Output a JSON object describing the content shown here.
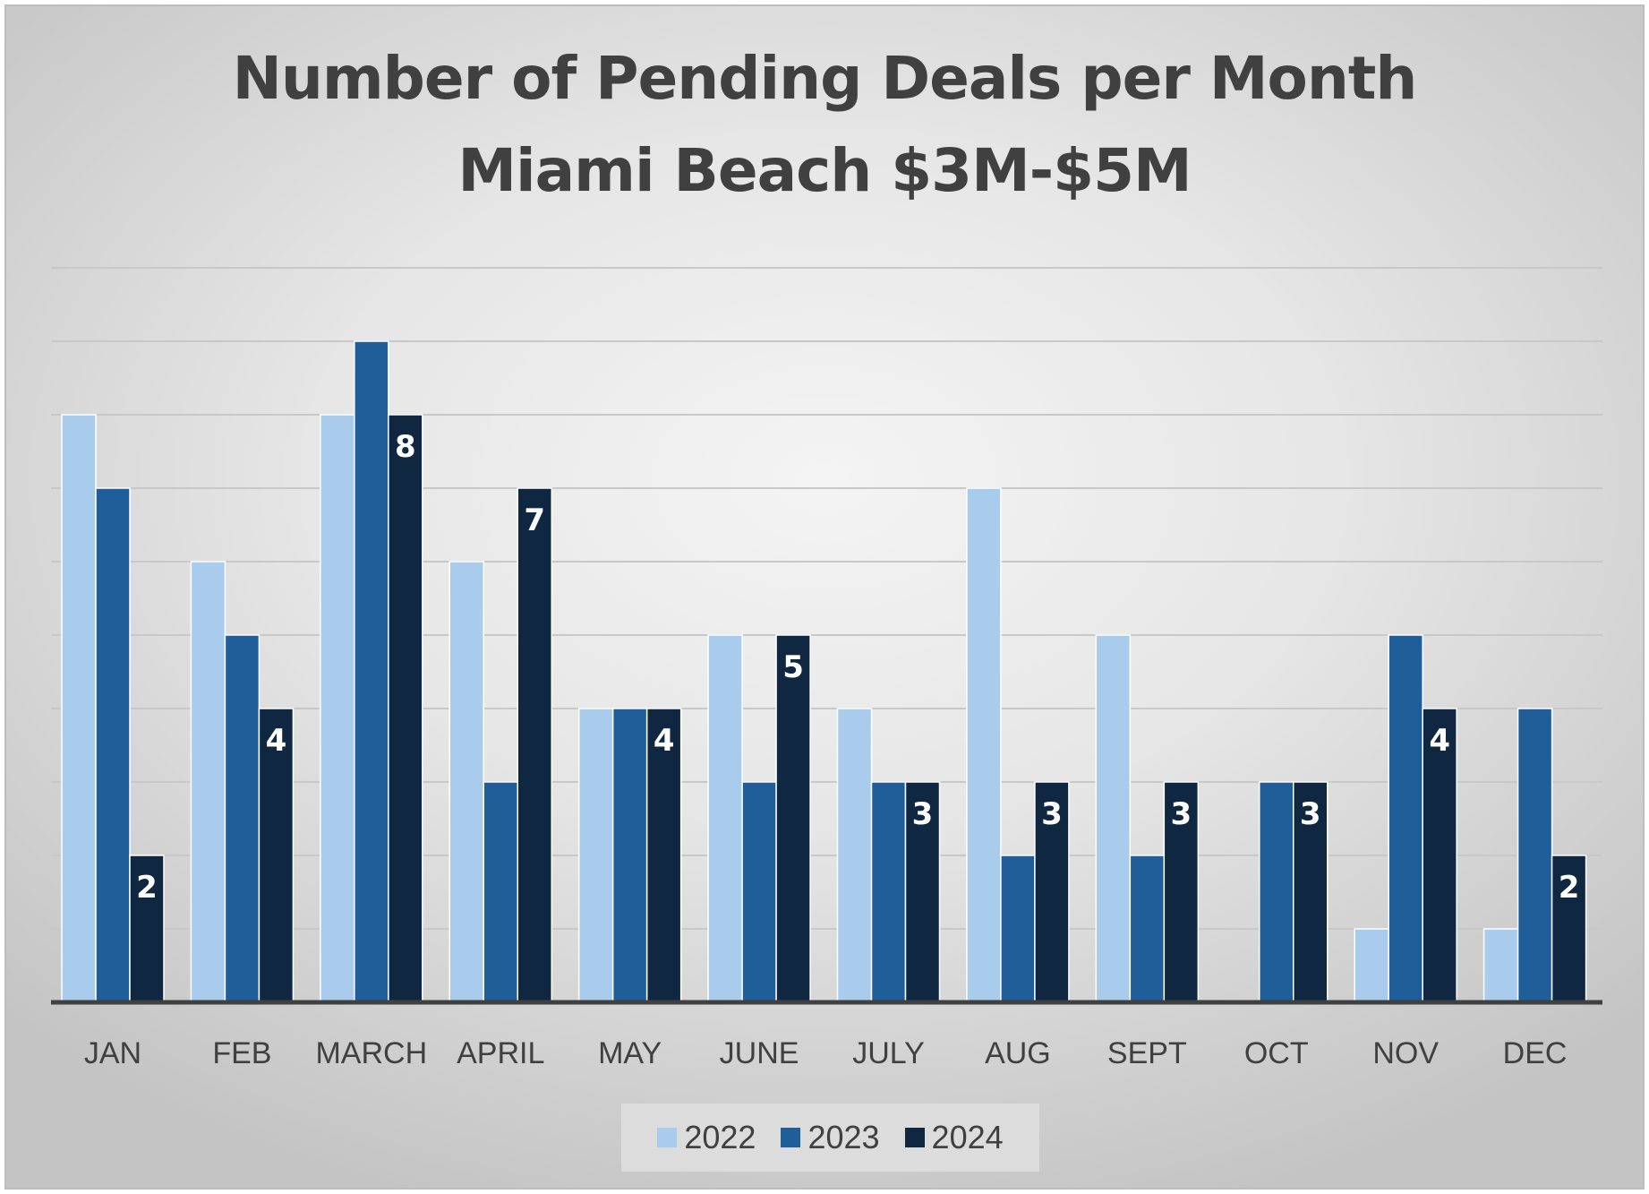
{
  "chart_data": {
    "type": "bar",
    "title": "Number of Pending Deals per Month",
    "subtitle": "Miami Beach $3M-$5M",
    "categories": [
      "JAN",
      "FEB",
      "MARCH",
      "APRIL",
      "MAY",
      "JUNE",
      "JULY",
      "AUG",
      "SEPT",
      "OCT",
      "NOV",
      "DEC"
    ],
    "series": [
      {
        "name": "2022",
        "color": "#A9CCEC",
        "values": [
          8,
          6,
          8,
          6,
          4,
          5,
          4,
          7,
          5,
          0,
          1,
          1
        ]
      },
      {
        "name": "2023",
        "color": "#1F5E99",
        "values": [
          7,
          5,
          9,
          3,
          4,
          3,
          3,
          2,
          2,
          3,
          5,
          4
        ]
      },
      {
        "name": "2024",
        "color": "#0F2740",
        "values": [
          2,
          4,
          8,
          7,
          4,
          5,
          3,
          3,
          3,
          3,
          4,
          2
        ]
      }
    ],
    "data_labels_series": "2024",
    "ylim": [
      0,
      10
    ],
    "yaxis_visible": false,
    "grid": true,
    "legend": "bottom"
  }
}
